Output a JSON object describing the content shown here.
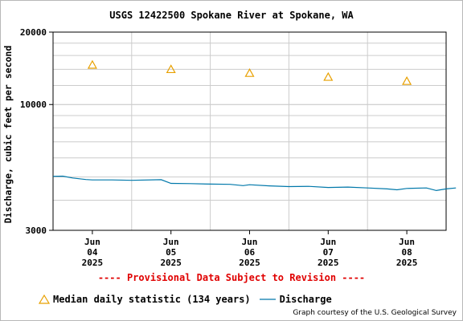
{
  "chart_data": {
    "type": "line",
    "title": "USGS 12422500 Spokane River at Spokane, WA",
    "ylabel": "Discharge, cubic feet per second",
    "xlabel": "",
    "yscale": "log",
    "ylim": [
      3000,
      20000
    ],
    "y_tick_labels": [
      "20000",
      "10000",
      "3000"
    ],
    "y_tick_values": [
      20000,
      10000,
      3000
    ],
    "x_range": [
      "2025-06-03T12:00",
      "2025-06-08T12:00"
    ],
    "x_ticks": [
      {
        "date": "2025-06-04",
        "month": "Jun",
        "day": "04",
        "year": "2025"
      },
      {
        "date": "2025-06-05",
        "month": "Jun",
        "day": "05",
        "year": "2025"
      },
      {
        "date": "2025-06-06",
        "month": "Jun",
        "day": "06",
        "year": "2025"
      },
      {
        "date": "2025-06-07",
        "month": "Jun",
        "day": "07",
        "year": "2025"
      },
      {
        "date": "2025-06-08",
        "month": "Jun",
        "day": "08",
        "year": "2025"
      }
    ],
    "grid": true,
    "legend_placement": "bottom-left",
    "series": [
      {
        "name": "Median daily statistic (134 years)",
        "marker": "triangle",
        "color": "#e8a000",
        "points": [
          {
            "x": "2025-06-04",
            "y": 14600
          },
          {
            "x": "2025-06-05",
            "y": 14000
          },
          {
            "x": "2025-06-06",
            "y": 13500
          },
          {
            "x": "2025-06-07",
            "y": 13000
          },
          {
            "x": "2025-06-08",
            "y": 12500
          }
        ]
      },
      {
        "name": "Discharge",
        "color": "#0078aa",
        "points": [
          {
            "x": "2025-06-03T12:00",
            "y": 5030
          },
          {
            "x": "2025-06-03T15:00",
            "y": 5040
          },
          {
            "x": "2025-06-03T18:00",
            "y": 4950
          },
          {
            "x": "2025-06-03T22:00",
            "y": 4880
          },
          {
            "x": "2025-06-04T00:00",
            "y": 4860
          },
          {
            "x": "2025-06-04T06:00",
            "y": 4860
          },
          {
            "x": "2025-06-04T12:00",
            "y": 4840
          },
          {
            "x": "2025-06-04T21:00",
            "y": 4870
          },
          {
            "x": "2025-06-05T00:00",
            "y": 4700
          },
          {
            "x": "2025-06-05T06:00",
            "y": 4690
          },
          {
            "x": "2025-06-05T12:00",
            "y": 4670
          },
          {
            "x": "2025-06-05T18:00",
            "y": 4660
          },
          {
            "x": "2025-06-05T22:00",
            "y": 4600
          },
          {
            "x": "2025-06-06T00:00",
            "y": 4640
          },
          {
            "x": "2025-06-06T06:00",
            "y": 4590
          },
          {
            "x": "2025-06-06T12:00",
            "y": 4560
          },
          {
            "x": "2025-06-06T18:00",
            "y": 4570
          },
          {
            "x": "2025-06-07T00:00",
            "y": 4520
          },
          {
            "x": "2025-06-07T06:00",
            "y": 4540
          },
          {
            "x": "2025-06-07T12:00",
            "y": 4500
          },
          {
            "x": "2025-06-07T18:00",
            "y": 4460
          },
          {
            "x": "2025-06-07T21:00",
            "y": 4420
          },
          {
            "x": "2025-06-08T00:00",
            "y": 4480
          },
          {
            "x": "2025-06-08T06:00",
            "y": 4500
          },
          {
            "x": "2025-06-08T09:00",
            "y": 4390
          },
          {
            "x": "2025-06-08T12:00",
            "y": 4460
          },
          {
            "x": "2025-06-08T15:00",
            "y": 4500
          }
        ]
      }
    ]
  },
  "provisional_notice": "---- Provisional Data Subject to Revision ----",
  "legend": {
    "median_label": "Median daily statistic (134 years)",
    "discharge_label": "Discharge"
  },
  "credit": "Graph courtesy of the U.S. Geological Survey"
}
